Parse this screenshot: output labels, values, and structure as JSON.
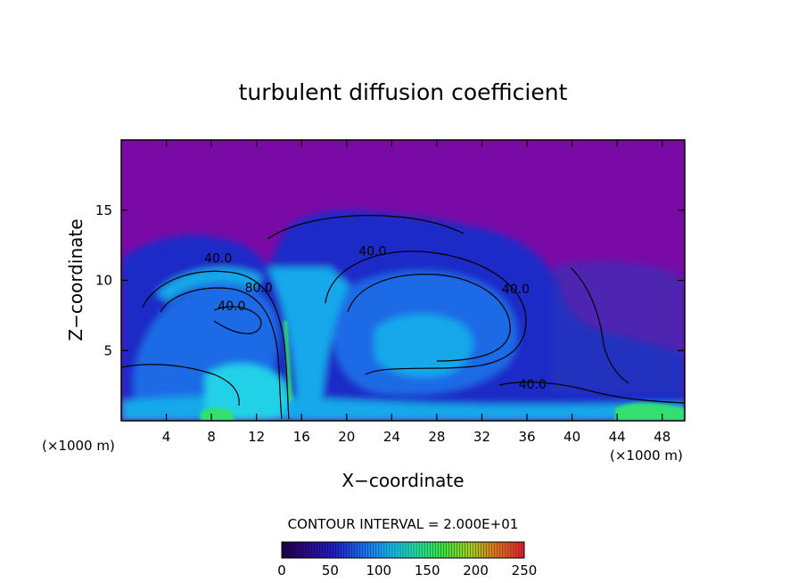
{
  "chart_data": {
    "type": "heatmap",
    "title": "turbulent diffusion coefficient",
    "xlabel": "X−coordinate",
    "ylabel": "Z−coordinate",
    "x_unit_left": "(×1000 m)",
    "x_unit_right": "(×1000 m)",
    "xlim": [
      0,
      50
    ],
    "ylim": [
      0,
      20
    ],
    "x_ticks": [
      4,
      8,
      12,
      16,
      20,
      24,
      28,
      32,
      36,
      40,
      44,
      48
    ],
    "y_ticks": [
      5,
      10,
      15
    ],
    "contour_interval_text": "CONTOUR INTERVAL = 2.000E+01",
    "contour_labels": [
      {
        "text": "40.0",
        "x": 8.6,
        "y": 11.6
      },
      {
        "text": "80.0",
        "x": 12.2,
        "y": 9.5
      },
      {
        "text": "40.0",
        "x": 9.8,
        "y": 8.2
      },
      {
        "text": "40.0",
        "x": 22.3,
        "y": 12.1
      },
      {
        "text": "40.0",
        "x": 35.0,
        "y": 9.4
      },
      {
        "text": "40.0",
        "x": 36.5,
        "y": 2.6
      }
    ],
    "colorbar": {
      "min": 0,
      "max": 250,
      "ticks": [
        0,
        50,
        100,
        150,
        200,
        250
      ],
      "colors": [
        "#22004a",
        "#2a0a8a",
        "#2020c8",
        "#1a6ef0",
        "#16b4f0",
        "#20e0a0",
        "#40e040",
        "#a0d020",
        "#e07020",
        "#e02030"
      ]
    },
    "colors": {
      "background_field": "#7a0aa6",
      "dark_blue": "#1a2cc8",
      "mid_blue": "#1e6ae6",
      "light_blue": "#18a8ea",
      "cyan": "#22d0e8",
      "green": "#30e070"
    }
  }
}
